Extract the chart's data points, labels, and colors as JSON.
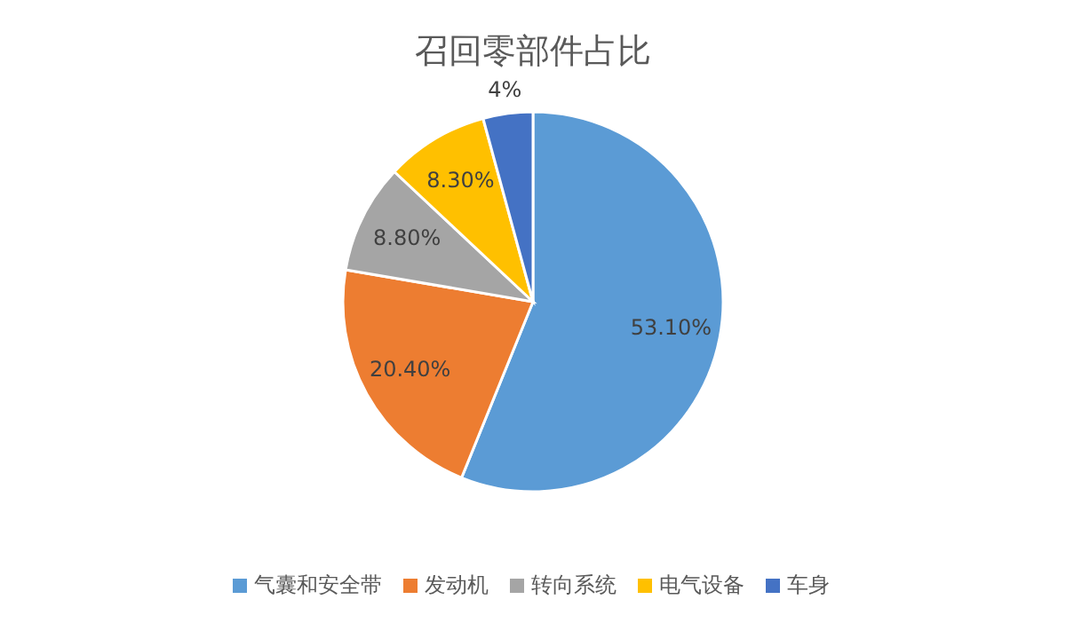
{
  "chart_data": {
    "type": "pie",
    "title": "召回零部件占比",
    "categories": [
      "气囊和安全带",
      "发动机",
      "转向系统",
      "电气设备",
      "车身"
    ],
    "values": [
      53.1,
      20.4,
      8.8,
      8.3,
      4
    ],
    "value_labels": [
      "53.10%",
      "20.40%",
      "8.80%",
      "8.30%",
      "4%"
    ],
    "colors": [
      "#5b9bd5",
      "#ed7d31",
      "#a5a5a5",
      "#ffc000",
      "#4472c4"
    ],
    "legend": "bottom"
  }
}
